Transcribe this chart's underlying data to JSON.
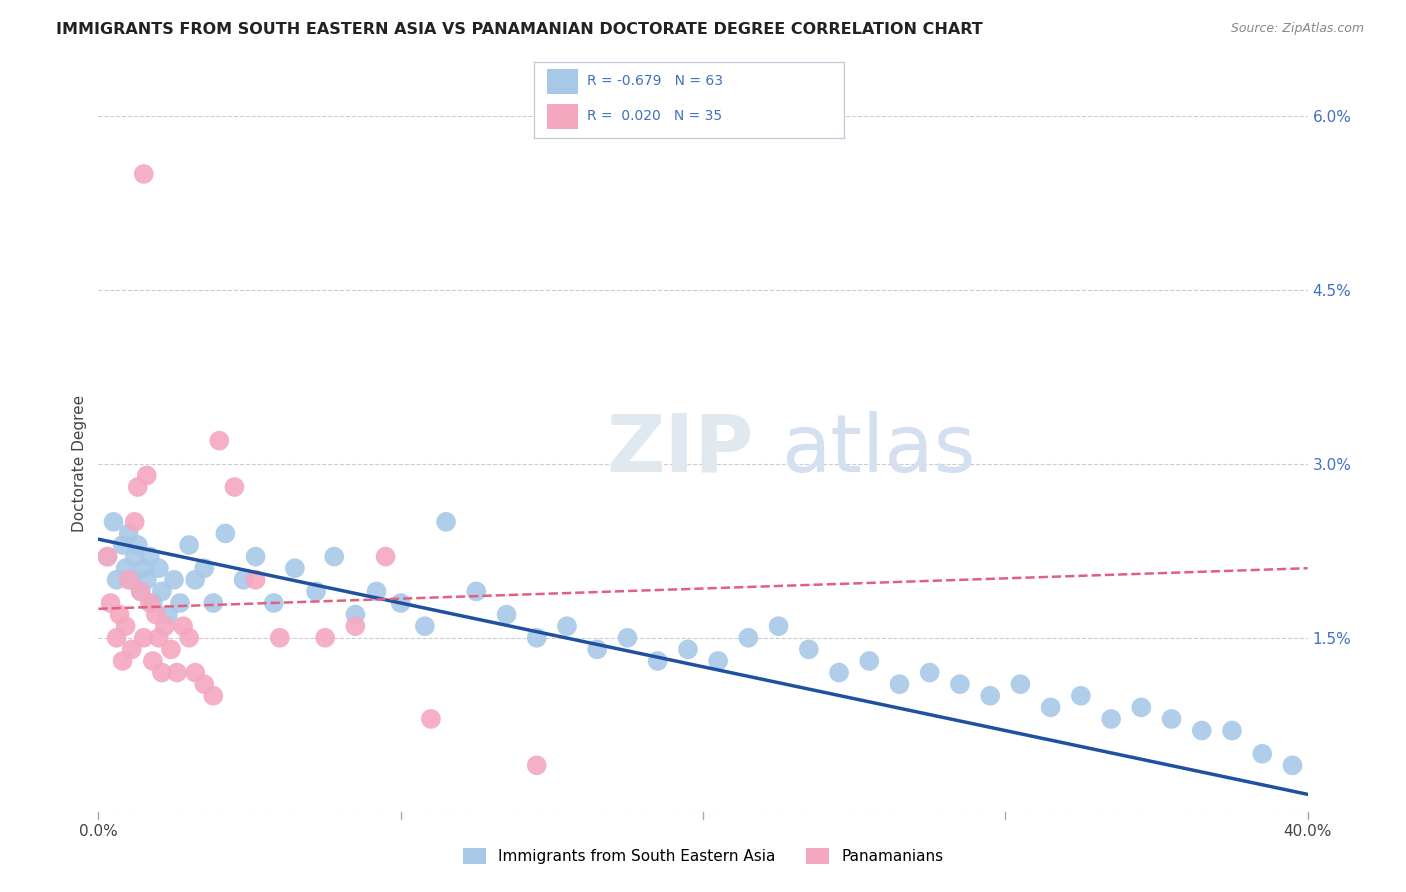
{
  "title": "IMMIGRANTS FROM SOUTH EASTERN ASIA VS PANAMANIAN DOCTORATE DEGREE CORRELATION CHART",
  "source": "Source: ZipAtlas.com",
  "ylabel": "Doctorate Degree",
  "xmin": 0.0,
  "xmax": 40.0,
  "ymin": 0.0,
  "ymax": 6.0,
  "yticks": [
    0.0,
    1.5,
    3.0,
    4.5,
    6.0
  ],
  "ytick_labels": [
    "",
    "1.5%",
    "3.0%",
    "4.5%",
    "6.0%"
  ],
  "color_blue": "#a8c8e8",
  "color_pink": "#f4a8c0",
  "color_blue_line": "#2050a0",
  "color_pink_line": "#e06080",
  "color_legend_text": "#4070c0",
  "background_color": "#ffffff",
  "blue_x": [
    0.3,
    0.5,
    0.6,
    0.8,
    0.9,
    1.0,
    1.1,
    1.2,
    1.3,
    1.4,
    1.5,
    1.6,
    1.7,
    1.8,
    2.0,
    2.1,
    2.3,
    2.5,
    2.7,
    3.0,
    3.2,
    3.5,
    3.8,
    4.2,
    4.8,
    5.2,
    5.8,
    6.5,
    7.2,
    7.8,
    8.5,
    9.2,
    10.0,
    10.8,
    11.5,
    12.5,
    13.5,
    14.5,
    15.5,
    16.5,
    17.5,
    18.5,
    19.5,
    20.5,
    21.5,
    22.5,
    23.5,
    24.5,
    25.5,
    26.5,
    27.5,
    28.5,
    29.5,
    30.5,
    31.5,
    32.5,
    33.5,
    34.5,
    35.5,
    36.5,
    37.5,
    38.5,
    39.5
  ],
  "blue_y": [
    2.2,
    2.5,
    2.0,
    2.3,
    2.1,
    2.4,
    2.0,
    2.2,
    2.3,
    1.9,
    2.1,
    2.0,
    2.2,
    1.8,
    2.1,
    1.9,
    1.7,
    2.0,
    1.8,
    2.3,
    2.0,
    2.1,
    1.8,
    2.4,
    2.0,
    2.2,
    1.8,
    2.1,
    1.9,
    2.2,
    1.7,
    1.9,
    1.8,
    1.6,
    2.5,
    1.9,
    1.7,
    1.5,
    1.6,
    1.4,
    1.5,
    1.3,
    1.4,
    1.3,
    1.5,
    1.6,
    1.4,
    1.2,
    1.3,
    1.1,
    1.2,
    1.1,
    1.0,
    1.1,
    0.9,
    1.0,
    0.8,
    0.9,
    0.8,
    0.7,
    0.7,
    0.5,
    0.4
  ],
  "pink_x": [
    0.3,
    0.4,
    0.6,
    0.7,
    0.8,
    0.9,
    1.0,
    1.1,
    1.2,
    1.3,
    1.4,
    1.5,
    1.6,
    1.7,
    1.8,
    1.9,
    2.0,
    2.1,
    2.2,
    2.4,
    2.6,
    2.8,
    3.0,
    3.2,
    3.5,
    4.0,
    4.5,
    5.2,
    6.0,
    7.5,
    8.5,
    9.5,
    11.0,
    14.5,
    3.8
  ],
  "pink_y": [
    2.2,
    1.8,
    1.5,
    1.7,
    1.3,
    1.6,
    2.0,
    1.4,
    2.5,
    2.8,
    1.9,
    1.5,
    2.9,
    1.8,
    1.3,
    1.7,
    1.5,
    1.2,
    1.6,
    1.4,
    1.2,
    1.6,
    1.5,
    1.2,
    1.1,
    3.2,
    2.8,
    2.0,
    1.5,
    1.5,
    1.6,
    2.2,
    0.8,
    0.4,
    1.0
  ],
  "pink_high_x": [
    1.5
  ],
  "pink_high_y": [
    5.5
  ],
  "blue_trend_x": [
    0.0,
    40.0
  ],
  "blue_trend_y": [
    2.35,
    0.15
  ],
  "pink_trend_x": [
    0.0,
    40.0
  ],
  "pink_trend_y": [
    1.75,
    2.1
  ]
}
